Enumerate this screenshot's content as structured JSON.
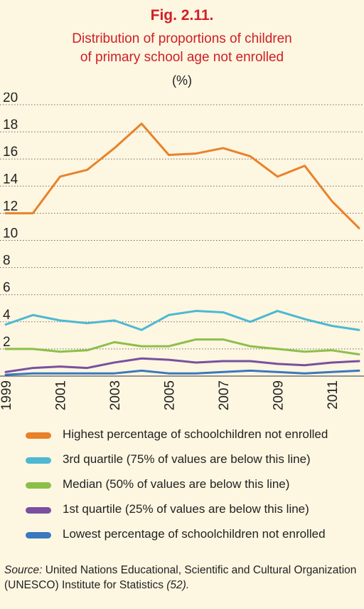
{
  "figure": {
    "label": "Fig. 2.11.",
    "title_line1": "Distribution of proportions of children",
    "title_line2": "of primary school age not enrolled",
    "unit": "(%)"
  },
  "colors": {
    "background": "#fdf6e1",
    "title": "#cf2027",
    "grid": "#333333"
  },
  "chart_data": {
    "type": "line",
    "title": "Distribution of proportions of children of primary school age not enrolled",
    "ylabel": "(%)",
    "xlabel": "",
    "ylim": [
      0,
      20
    ],
    "yticks": [
      2,
      4,
      6,
      8,
      10,
      12,
      14,
      16,
      18,
      20
    ],
    "xlim": [
      1999,
      2012
    ],
    "xticks": [
      1999,
      2001,
      2003,
      2005,
      2007,
      2009,
      2011
    ],
    "grid": "horizontal dotted",
    "legend_position": "bottom",
    "x": [
      1999,
      2000,
      2001,
      2002,
      2003,
      2004,
      2005,
      2006,
      2007,
      2008,
      2009,
      2010,
      2011,
      2012
    ],
    "series": [
      {
        "name": "Highest percentage of schoolchildren not enrolled",
        "color": "#e8822a",
        "values": [
          12.0,
          12.0,
          14.7,
          15.2,
          16.8,
          18.6,
          16.3,
          16.4,
          16.8,
          16.2,
          14.7,
          15.5,
          12.9,
          10.9
        ]
      },
      {
        "name": "3rd quartile (75% of values are below this line)",
        "color": "#4db8d3",
        "values": [
          3.8,
          4.5,
          4.1,
          3.9,
          4.1,
          3.4,
          4.5,
          4.8,
          4.7,
          4.0,
          4.8,
          4.2,
          3.7,
          3.4
        ]
      },
      {
        "name": "Median (50% of values are below this line)",
        "color": "#8cbf4a",
        "values": [
          2.0,
          2.0,
          1.8,
          1.9,
          2.5,
          2.2,
          2.2,
          2.7,
          2.7,
          2.2,
          2.0,
          1.8,
          1.9,
          1.6
        ]
      },
      {
        "name": "1st quartile (25% of values are below this line)",
        "color": "#7a4fa0",
        "values": [
          0.3,
          0.6,
          0.7,
          0.6,
          1.0,
          1.3,
          1.2,
          1.0,
          1.1,
          1.1,
          0.9,
          0.8,
          1.0,
          1.1
        ]
      },
      {
        "name": "Lowest percentage of schoolchildren not enrolled",
        "color": "#3a78bf",
        "values": [
          0.1,
          0.2,
          0.2,
          0.2,
          0.2,
          0.4,
          0.2,
          0.2,
          0.3,
          0.4,
          0.3,
          0.2,
          0.3,
          0.4
        ]
      }
    ]
  },
  "source": {
    "prefix": "Source:",
    "text": " United Nations Educational, Scientific and Cultural Organization (UNESCO) Institute for Statistics ",
    "ref": "(52)."
  }
}
